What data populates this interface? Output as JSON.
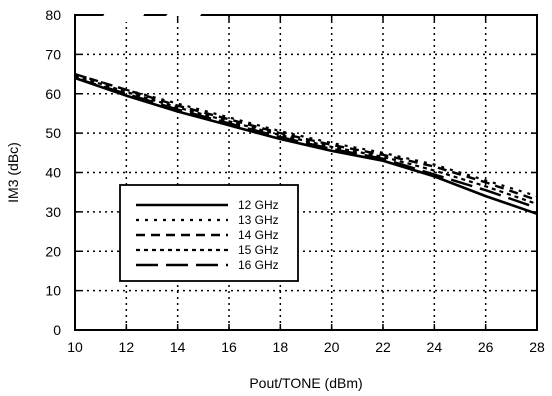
{
  "chart_data": {
    "type": "line",
    "xlabel": "Pout/TONE (dBm)",
    "ylabel": "IM3 (dBc)",
    "xlim": [
      10,
      28
    ],
    "ylim": [
      0,
      80
    ],
    "xticks": [
      10,
      12,
      14,
      16,
      18,
      20,
      22,
      24,
      26,
      28
    ],
    "yticks": [
      0,
      10,
      20,
      30,
      40,
      50,
      60,
      70,
      80
    ],
    "grid": true,
    "legend_position": "lower-left",
    "series": [
      {
        "name": "12 GHz",
        "dash": "solid",
        "width": 2.6,
        "x": [
          10,
          12,
          14,
          16,
          18,
          20,
          22,
          24,
          26,
          28
        ],
        "y": [
          64,
          59.5,
          55.5,
          52,
          48.5,
          45.5,
          43,
          39,
          34,
          29.5
        ]
      },
      {
        "name": "13 GHz",
        "dash": "dotted",
        "width": 2.2,
        "x": [
          10,
          12,
          14,
          16,
          18,
          20,
          22,
          24,
          26,
          28
        ],
        "y": [
          65,
          61,
          57.5,
          54,
          50.5,
          47.5,
          45,
          42,
          38,
          34
        ]
      },
      {
        "name": "14 GHz",
        "dash": "dashed",
        "width": 2.4,
        "x": [
          10,
          12,
          14,
          16,
          18,
          20,
          22,
          24,
          26,
          28
        ],
        "y": [
          65,
          61,
          57,
          53.5,
          50,
          47,
          44.5,
          41.5,
          37.5,
          33
        ]
      },
      {
        "name": "15 GHz",
        "dash": "short-dash",
        "width": 2.2,
        "x": [
          10,
          12,
          14,
          16,
          18,
          20,
          22,
          24,
          26,
          28
        ],
        "y": [
          64.5,
          60.5,
          56.5,
          53,
          49.5,
          46.5,
          44,
          40.5,
          36.5,
          32
        ]
      },
      {
        "name": "16 GHz",
        "dash": "long-dash",
        "width": 2.4,
        "x": [
          10,
          12,
          14,
          16,
          18,
          20,
          22,
          24,
          26,
          28
        ],
        "y": [
          64,
          60,
          56,
          52.5,
          49,
          46,
          43.5,
          39.5,
          35.5,
          31
        ]
      }
    ]
  }
}
